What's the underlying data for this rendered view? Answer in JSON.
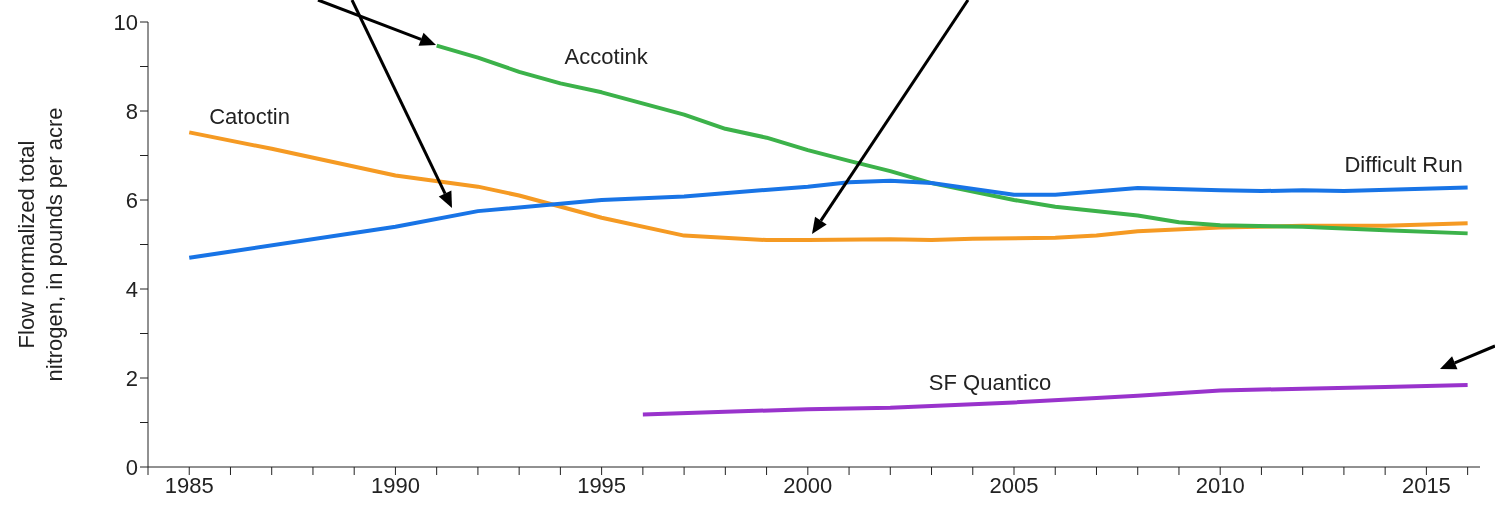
{
  "chart_data": {
    "type": "line",
    "ylabel": "Flow normalized total nitrogen, in pounds per acre",
    "xlim": [
      1984,
      2016.3
    ],
    "ylim": [
      0,
      10
    ],
    "xticks": [
      {
        "value": 1984,
        "label": null
      },
      1985,
      {
        "value": 1986,
        "label": null
      },
      {
        "value": 1987,
        "label": null
      },
      {
        "value": 1988,
        "label": null
      },
      {
        "value": 1989,
        "label": null
      },
      1990,
      {
        "value": 1991,
        "label": null
      },
      {
        "value": 1992,
        "label": null
      },
      {
        "value": 1993,
        "label": null
      },
      {
        "value": 1994,
        "label": null
      },
      1995,
      {
        "value": 1996,
        "label": null
      },
      {
        "value": 1997,
        "label": null
      },
      {
        "value": 1998,
        "label": null
      },
      {
        "value": 1999,
        "label": null
      },
      2000,
      {
        "value": 2001,
        "label": null
      },
      {
        "value": 2002,
        "label": null
      },
      {
        "value": 2003,
        "label": null
      },
      {
        "value": 2004,
        "label": null
      },
      2005,
      {
        "value": 2006,
        "label": null
      },
      {
        "value": 2007,
        "label": null
      },
      {
        "value": 2008,
        "label": null
      },
      {
        "value": 2009,
        "label": null
      },
      2010,
      {
        "value": 2011,
        "label": null
      },
      {
        "value": 2012,
        "label": null
      },
      {
        "value": 2013,
        "label": null
      },
      {
        "value": 2014,
        "label": null
      },
      2015,
      {
        "value": 2016,
        "label": null
      }
    ],
    "yticks": [
      0,
      {
        "value": 1,
        "label": null
      },
      2,
      {
        "value": 3,
        "label": null
      },
      4,
      {
        "value": 5,
        "label": null
      },
      6,
      {
        "value": 7,
        "label": null
      },
      8,
      {
        "value": 9,
        "label": null
      },
      10
    ],
    "grid": false,
    "legend": false,
    "marker": "none",
    "line_style": "solid",
    "series": [
      {
        "name": "Catoctin",
        "color": "#f59a23",
        "x": [
          1985,
          1987,
          1990,
          1992,
          1993,
          1995,
          1997,
          1999,
          2000,
          2002,
          2003,
          2004,
          2006,
          2007,
          2008,
          2010,
          2012,
          2014,
          2016
        ],
        "values": [
          7.52,
          7.15,
          6.55,
          6.3,
          6.1,
          5.6,
          5.2,
          5.1,
          5.1,
          5.12,
          5.1,
          5.13,
          5.15,
          5.2,
          5.3,
          5.38,
          5.42,
          5.42,
          5.48
        ]
      },
      {
        "name": "Accotink",
        "color": "#3cb24a",
        "x": [
          1991,
          1992,
          1993,
          1994,
          1995,
          1997,
          1998,
          1999,
          2000,
          2001,
          2002,
          2003,
          2005,
          2006,
          2008,
          2009,
          2010,
          2012,
          2014,
          2016
        ],
        "values": [
          9.47,
          9.2,
          8.88,
          8.62,
          8.42,
          7.92,
          7.6,
          7.4,
          7.12,
          6.88,
          6.65,
          6.38,
          6.0,
          5.85,
          5.65,
          5.5,
          5.43,
          5.4,
          5.32,
          5.25
        ]
      },
      {
        "name": "Difficult Run",
        "color": "#1874e6",
        "x": [
          1985,
          1990,
          1992,
          1995,
          1997,
          2000,
          2001,
          2002,
          2003,
          2005,
          2006,
          2008,
          2010,
          2011,
          2012,
          2013,
          2016
        ],
        "values": [
          4.7,
          5.4,
          5.75,
          6.0,
          6.08,
          6.3,
          6.4,
          6.43,
          6.38,
          6.12,
          6.12,
          6.27,
          6.22,
          6.2,
          6.22,
          6.2,
          6.28
        ]
      },
      {
        "name": "SF Quantico",
        "color": "#9933cc",
        "x": [
          1996,
          1998,
          2000,
          2002,
          2003,
          2005,
          2007,
          2008,
          2010,
          2012,
          2014,
          2016
        ],
        "values": [
          1.18,
          1.24,
          1.3,
          1.33,
          1.37,
          1.45,
          1.55,
          1.6,
          1.72,
          1.76,
          1.8,
          1.84
        ]
      }
    ]
  }
}
